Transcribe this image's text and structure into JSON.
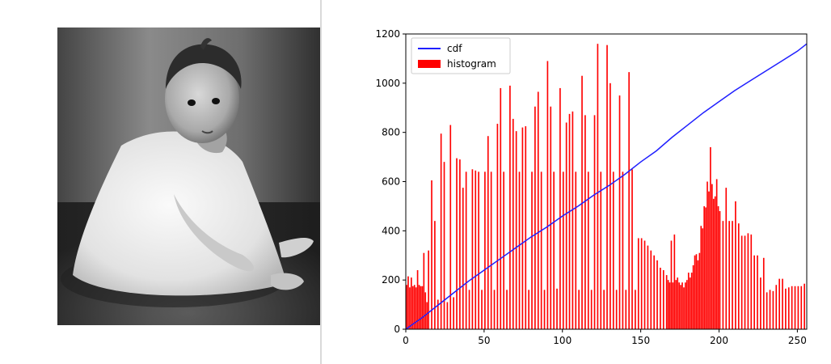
{
  "image_panel": {
    "description_icon": "baby-portrait-photo"
  },
  "colors": {
    "cdf_line": "#1f1fff",
    "histogram_bars": "#ff0000",
    "axes": "#000000"
  },
  "chart_data": {
    "type": "bar",
    "title": "",
    "xlabel": "",
    "ylabel": "",
    "xlim": [
      0,
      256
    ],
    "ylim": [
      0,
      1200
    ],
    "xticks": [
      0,
      50,
      100,
      150,
      200,
      250
    ],
    "yticks": [
      0,
      200,
      400,
      600,
      800,
      1000,
      1200
    ],
    "grid": false,
    "legend": {
      "placement": "top-left",
      "entries": [
        "cdf",
        "histogram"
      ]
    },
    "series": [
      {
        "name": "histogram",
        "kind": "bar",
        "x": [
          0,
          1,
          2,
          3,
          4,
          5,
          6,
          7,
          8,
          9,
          10,
          11,
          12,
          13,
          14,
          16,
          18,
          20,
          22,
          24,
          26,
          28,
          30,
          32,
          34,
          36,
          38,
          40,
          42,
          44,
          46,
          48,
          50,
          52,
          54,
          56,
          58,
          60,
          62,
          64,
          66,
          68,
          70,
          72,
          74,
          76,
          78,
          80,
          82,
          84,
          86,
          88,
          90,
          92,
          94,
          96,
          98,
          100,
          102,
          104,
          106,
          108,
          110,
          112,
          114,
          116,
          118,
          120,
          122,
          124,
          126,
          128,
          130,
          132,
          134,
          136,
          138,
          140,
          142,
          144,
          146,
          148,
          150,
          152,
          154,
          156,
          158,
          160,
          162,
          164,
          166,
          167,
          168,
          169,
          170,
          171,
          172,
          173,
          174,
          175,
          176,
          177,
          178,
          179,
          180,
          181,
          182,
          183,
          184,
          185,
          186,
          187,
          188,
          189,
          190,
          191,
          192,
          193,
          194,
          195,
          196,
          197,
          198,
          199,
          200,
          202,
          204,
          206,
          208,
          210,
          212,
          214,
          216,
          218,
          220,
          222,
          224,
          226,
          228,
          230,
          232,
          234,
          236,
          238,
          240,
          242,
          244,
          246,
          248,
          250,
          252,
          254
        ],
        "values": [
          180,
          215,
          170,
          210,
          175,
          180,
          170,
          240,
          180,
          175,
          175,
          310,
          150,
          110,
          320,
          605,
          440,
          120,
          795,
          680,
          110,
          830,
          130,
          695,
          690,
          575,
          640,
          160,
          650,
          645,
          640,
          160,
          640,
          785,
          640,
          160,
          835,
          980,
          640,
          160,
          990,
          855,
          805,
          640,
          820,
          825,
          160,
          640,
          905,
          965,
          640,
          160,
          1090,
          905,
          640,
          165,
          980,
          640,
          840,
          875,
          885,
          640,
          160,
          1030,
          870,
          640,
          160,
          870,
          1160,
          640,
          160,
          1155,
          1000,
          640,
          160,
          950,
          640,
          160,
          1045,
          650,
          160,
          370,
          370,
          360,
          340,
          320,
          300,
          280,
          250,
          240,
          220,
          200,
          190,
          360,
          190,
          385,
          200,
          210,
          190,
          180,
          190,
          170,
          190,
          200,
          230,
          210,
          230,
          260,
          300,
          305,
          280,
          310,
          420,
          410,
          500,
          495,
          600,
          560,
          740,
          590,
          530,
          540,
          610,
          500,
          480,
          440,
          575,
          440,
          440,
          520,
          430,
          380,
          380,
          390,
          385,
          300,
          300,
          210,
          290,
          150,
          160,
          155,
          180,
          205,
          205,
          165,
          170,
          175,
          175,
          175,
          175,
          185
        ],
        "color": "#ff0000"
      },
      {
        "name": "cdf",
        "kind": "line",
        "x": [
          0,
          10,
          20,
          30,
          40,
          50,
          60,
          70,
          80,
          90,
          100,
          110,
          120,
          130,
          140,
          150,
          160,
          170,
          180,
          190,
          200,
          210,
          220,
          230,
          240,
          250,
          256
        ],
        "values": [
          0,
          45,
          95,
          145,
          195,
          240,
          285,
          330,
          375,
          415,
          460,
          500,
          545,
          585,
          630,
          680,
          725,
          780,
          830,
          880,
          925,
          970,
          1010,
          1050,
          1090,
          1130,
          1160
        ],
        "color": "#1f1fff"
      }
    ]
  }
}
